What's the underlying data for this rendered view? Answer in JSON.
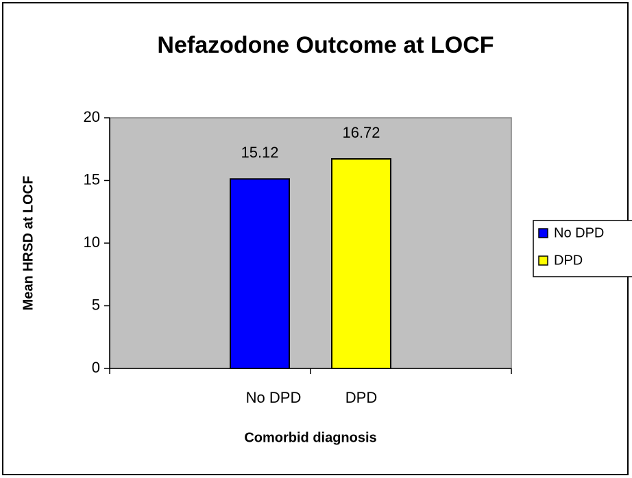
{
  "chart_data": {
    "type": "bar",
    "title": "Nefazodone Outcome at LOCF",
    "categories": [
      "No DPD",
      "DPD"
    ],
    "values": [
      15.12,
      16.72
    ],
    "colors": [
      "#0000ff",
      "#ffff00"
    ],
    "ylim": [
      0,
      20
    ],
    "yticks": [
      0,
      5,
      10,
      15,
      20
    ],
    "y_label": "Mean HRSD at LOCF",
    "x_label": "Comorbid diagnosis",
    "legend": "right"
  }
}
